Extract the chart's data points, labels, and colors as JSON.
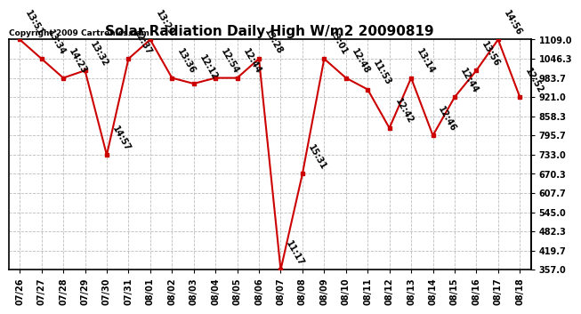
{
  "title": "Solar Radiation Daily High W/m2 20090819",
  "copyright": "Copyright 2009 Cartronics.com",
  "dates": [
    "07/26",
    "07/27",
    "07/28",
    "07/29",
    "07/30",
    "07/31",
    "08/01",
    "08/02",
    "08/03",
    "08/04",
    "08/05",
    "08/06",
    "08/07",
    "08/08",
    "08/09",
    "08/10",
    "08/11",
    "08/12",
    "08/13",
    "08/14",
    "08/15",
    "08/16",
    "08/17",
    "08/18"
  ],
  "values": [
    1109.0,
    1046.3,
    983.7,
    1008.0,
    732.0,
    1046.3,
    1109.0,
    983.7,
    965.0,
    983.7,
    983.7,
    1046.3,
    357.0,
    670.3,
    1046.3,
    983.7,
    946.0,
    820.0,
    983.7,
    795.7,
    921.0,
    1008.0,
    1109.0,
    921.0
  ],
  "times": [
    "13:51",
    "13:34",
    "14:23",
    "13:32",
    "14:57",
    "12:37",
    "13:29",
    "13:36",
    "12:12",
    "12:54",
    "12:44",
    "13:28",
    "11:17",
    "15:31",
    "13:01",
    "12:48",
    "11:53",
    "12:42",
    "13:14",
    "12:46",
    "12:44",
    "13:56",
    "14:56",
    "12:52"
  ],
  "yticks": [
    357.0,
    419.7,
    482.3,
    545.0,
    607.7,
    670.3,
    733.0,
    795.7,
    858.3,
    921.0,
    983.7,
    1046.3,
    1109.0
  ],
  "ymin": 357.0,
  "ymax": 1109.0,
  "line_color": "#cc0000",
  "bg_color": "#ffffff",
  "grid_color": "#bbbbbb",
  "title_fontsize": 11,
  "tick_fontsize": 7,
  "annot_fontsize": 7
}
